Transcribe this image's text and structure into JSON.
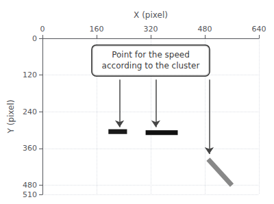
{
  "chart_data": {
    "type": "line",
    "xlabel": "X (pixel)",
    "ylabel": "Y (pixel)",
    "xlim": [
      0,
      640
    ],
    "ylim": [
      510,
      0
    ],
    "xticks": [
      0,
      160,
      320,
      480,
      640
    ],
    "yticks": [
      0,
      120,
      240,
      360,
      480
    ],
    "grid": true,
    "series": [
      {
        "x": [
          195,
          250
        ],
        "values": [
          305,
          305
        ],
        "color": "#1a1a1a"
      },
      {
        "x": [
          305,
          400
        ],
        "values": [
          308,
          308
        ],
        "color": "#111111"
      },
      {
        "x": [
          490,
          560
        ],
        "values": [
          395,
          480
        ],
        "color": "#888888"
      },
      {
        "type": "arrow",
        "x": [
          228,
          228
        ],
        "values": [
          135,
          290
        ],
        "color": "#444444"
      },
      {
        "type": "arrow",
        "x": [
          335,
          335
        ],
        "values": [
          135,
          290
        ],
        "color": "#444444"
      },
      {
        "type": "arrow",
        "x": [
          493,
          493
        ],
        "values": [
          135,
          378
        ],
        "color": "#444444"
      }
    ],
    "annotations": [
      {
        "text": "Point for the speed\naccording to the cluster",
        "x": 320,
        "y": 72.5
      }
    ]
  }
}
